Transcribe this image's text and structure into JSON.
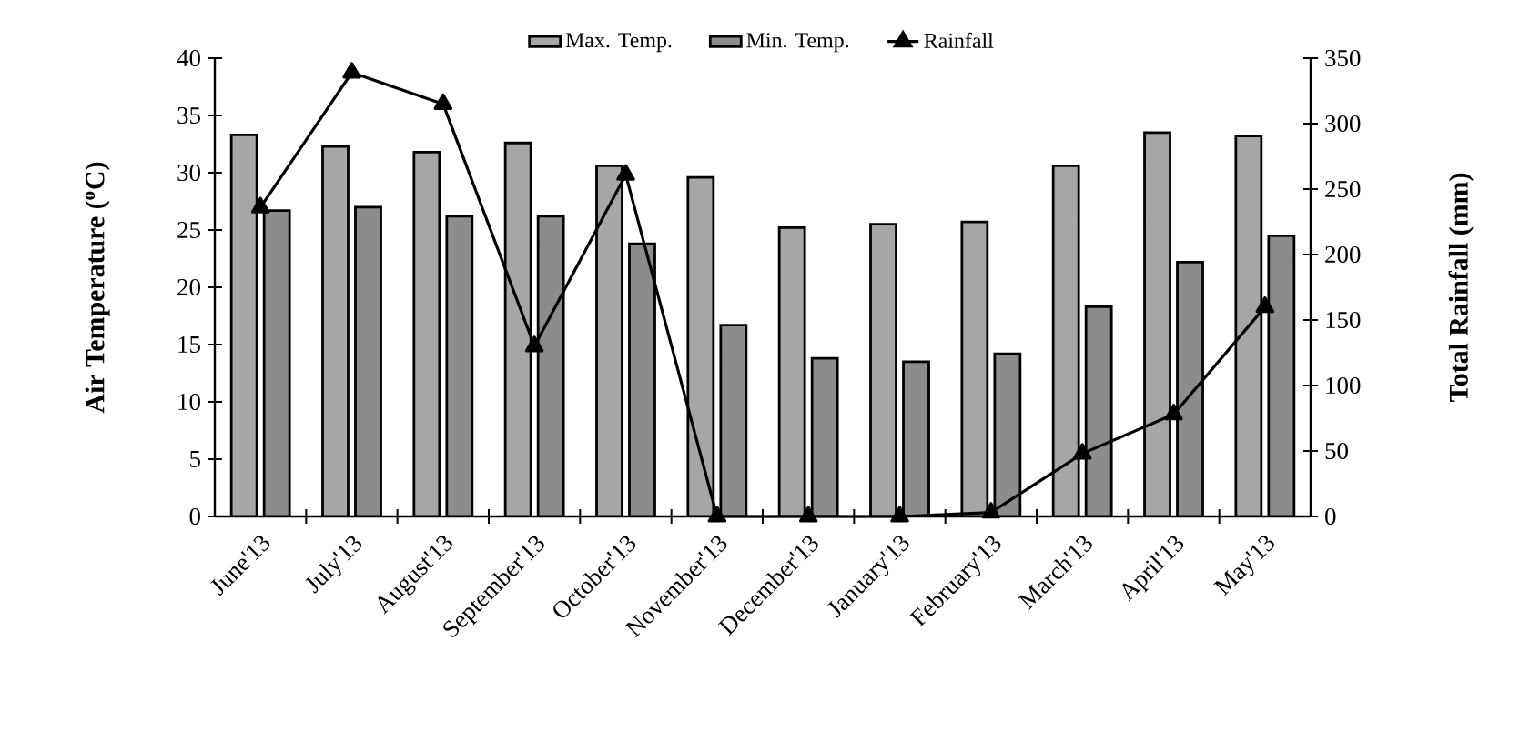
{
  "chart_data": {
    "type": "bar",
    "ylabel": "Air Temperature ($^{o}$C)",
    "y2label": "Total Rainfall (mm)",
    "categories": [
      "June'13",
      "July'13",
      "August'13",
      "September'13",
      "October'13",
      "November'13",
      "December'13",
      "January'13",
      "February'13",
      "March'13",
      "April'13",
      "May'13"
    ],
    "series": [
      {
        "name": "Max. Temp.",
        "color": "#a6a6a6",
        "values": [
          33.3,
          32.3,
          31.8,
          32.6,
          30.6,
          29.6,
          25.2,
          25.5,
          25.7,
          30.6,
          33.5,
          33.2
        ]
      },
      {
        "name": "Min. Temp.",
        "color": "#8c8c8c",
        "values": [
          26.7,
          27.0,
          26.2,
          26.2,
          23.8,
          16.7,
          13.8,
          13.5,
          14.2,
          18.3,
          22.2,
          24.5
        ]
      },
      {
        "name": "Rainfall",
        "type": "line",
        "axis": "y2",
        "marker": "triangle",
        "color": "#000000",
        "values": [
          236,
          339,
          315,
          130,
          261,
          0,
          0,
          0,
          3,
          48,
          78,
          160
        ]
      }
    ],
    "ylim": [
      0,
      40
    ],
    "yticks": [
      0,
      5,
      10,
      15,
      20,
      25,
      30,
      35,
      40
    ],
    "y2lim": [
      0,
      350
    ],
    "y2ticks": [
      0,
      50,
      100,
      150,
      200,
      250,
      300,
      350
    ],
    "legend": "top"
  }
}
